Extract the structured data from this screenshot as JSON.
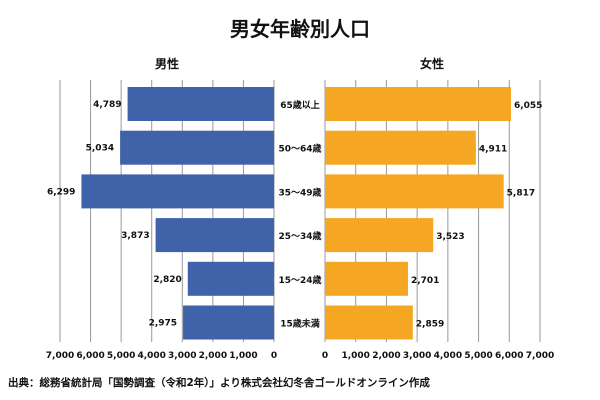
{
  "chart_data": {
    "type": "bar",
    "orientation": "horizontal-pyramid",
    "title": "男女年齢別人口",
    "categories": [
      "65歳以上",
      "50〜64歳",
      "35〜49歳",
      "25〜34歳",
      "15〜24歳",
      "15歳未満"
    ],
    "series": [
      {
        "name": "男性",
        "values": [
          4789,
          5034,
          6299,
          3873,
          2820,
          2975
        ],
        "labels": [
          "4,789",
          "5,034",
          "6,299",
          "3,873",
          "2,820",
          "2,975"
        ],
        "color": "#3f62a8"
      },
      {
        "name": "女性",
        "values": [
          6055,
          4911,
          5817,
          3523,
          2701,
          2859
        ],
        "labels": [
          "6,055",
          "4,911",
          "5,817",
          "3,523",
          "2,701",
          "2,859"
        ],
        "color": "#f5a623"
      }
    ],
    "xlim": [
      0,
      7000
    ],
    "ticks": [
      "0",
      "1,000",
      "2,000",
      "3,000",
      "4,000",
      "5,000",
      "6,000",
      "7,000"
    ],
    "grid": true,
    "source": "出典：総務省統計局「国勢調査（令和2年）」より株式会社幻冬舎ゴールドオンライン作成"
  }
}
